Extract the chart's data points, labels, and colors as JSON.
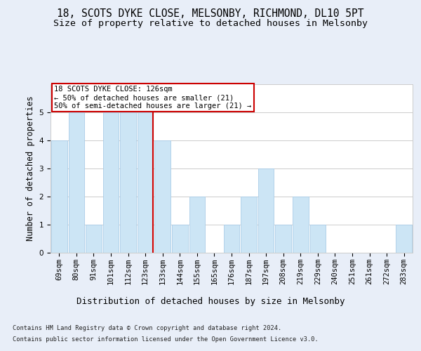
{
  "title1": "18, SCOTS DYKE CLOSE, MELSONBY, RICHMOND, DL10 5PT",
  "title2": "Size of property relative to detached houses in Melsonby",
  "xlabel": "Distribution of detached houses by size in Melsonby",
  "ylabel": "Number of detached properties",
  "footnote1": "Contains HM Land Registry data © Crown copyright and database right 2024.",
  "footnote2": "Contains public sector information licensed under the Open Government Licence v3.0.",
  "categories": [
    "69sqm",
    "80sqm",
    "91sqm",
    "101sqm",
    "112sqm",
    "123sqm",
    "133sqm",
    "144sqm",
    "155sqm",
    "165sqm",
    "176sqm",
    "187sqm",
    "197sqm",
    "208sqm",
    "219sqm",
    "229sqm",
    "240sqm",
    "251sqm",
    "261sqm",
    "272sqm",
    "283sqm"
  ],
  "values": [
    4,
    5,
    1,
    5,
    5,
    5,
    4,
    1,
    2,
    0,
    1,
    2,
    3,
    1,
    2,
    1,
    0,
    0,
    0,
    0,
    1
  ],
  "bar_color": "#cce5f5",
  "bar_edgecolor": "#aacce8",
  "highlight_index": 5,
  "highlight_line_color": "#cc0000",
  "annotation_box_color": "#cc0000",
  "annotation_box_text": "18 SCOTS DYKE CLOSE: 126sqm\n← 50% of detached houses are smaller (21)\n50% of semi-detached houses are larger (21) →",
  "ylim": [
    0,
    6
  ],
  "yticks": [
    0,
    1,
    2,
    3,
    4,
    5
  ],
  "bg_color": "#e8eef8",
  "plot_bg_color": "#ffffff",
  "title1_fontsize": 10.5,
  "title2_fontsize": 9.5,
  "xlabel_fontsize": 9,
  "ylabel_fontsize": 8.5,
  "tick_fontsize": 7.5,
  "annotation_fontsize": 7.5,
  "footnote_fontsize": 6.2
}
